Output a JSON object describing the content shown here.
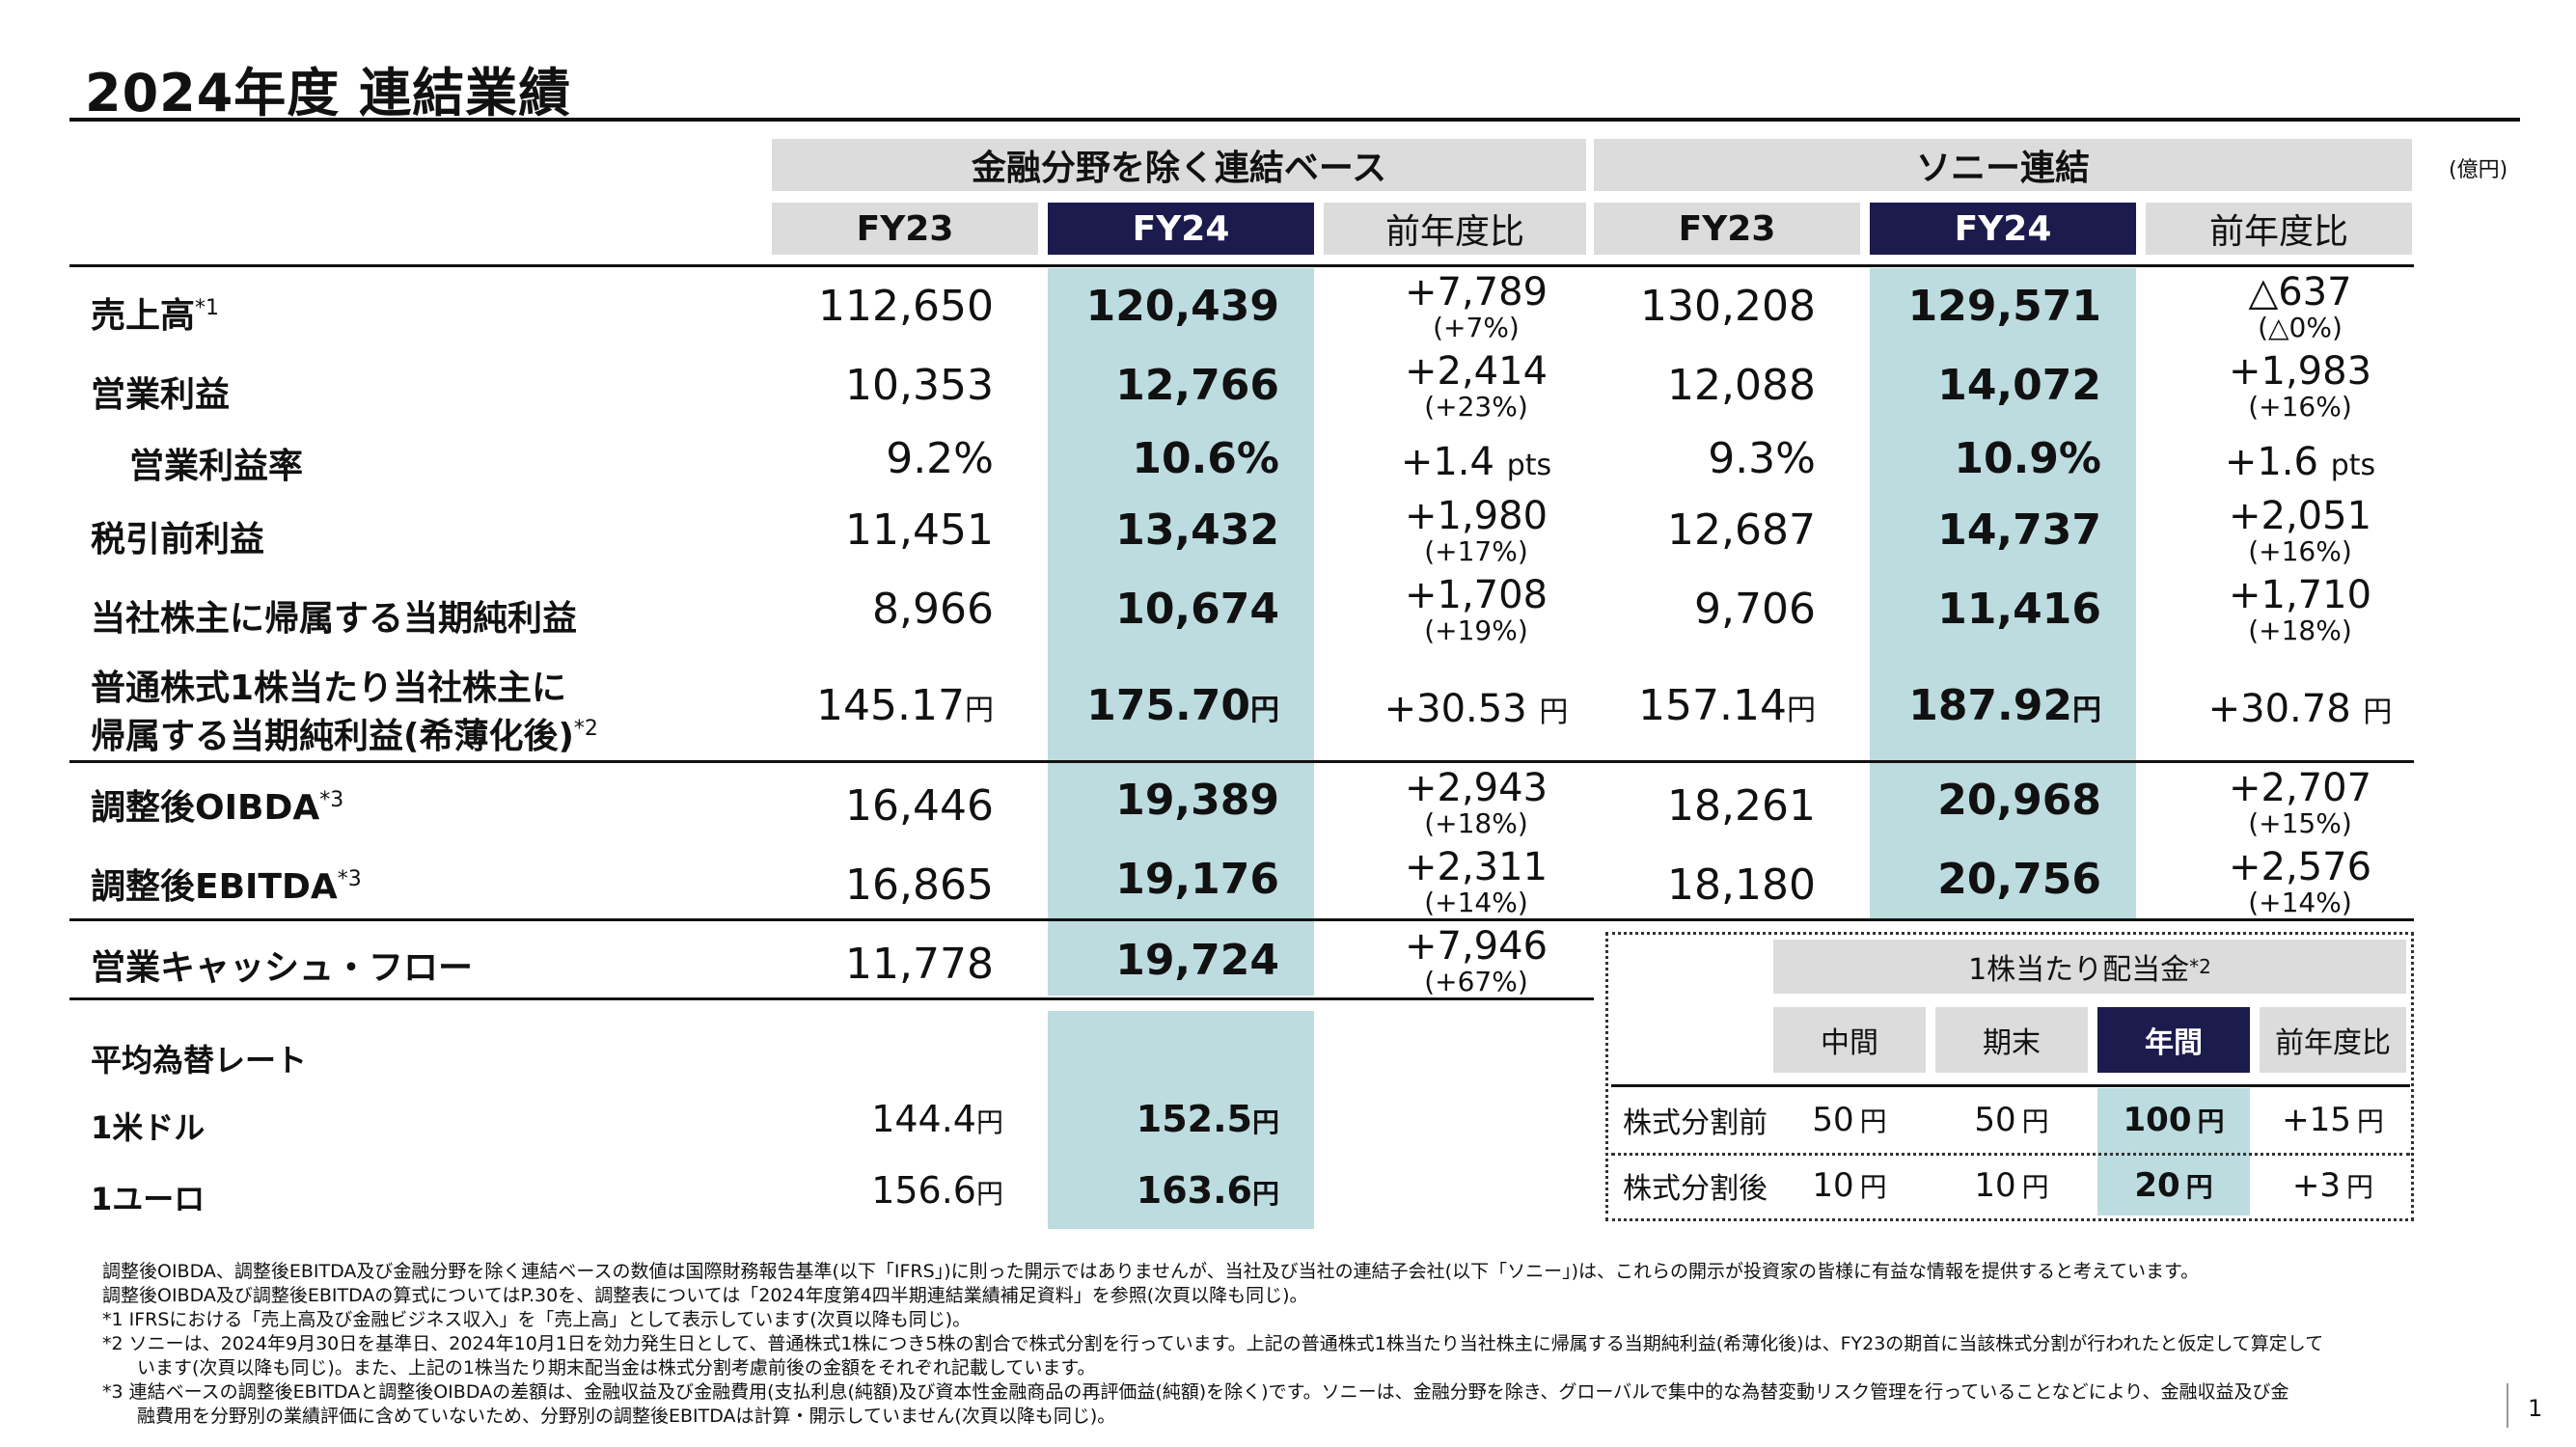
{
  "title": "2024年度 連結業績",
  "unit": "(億円)",
  "groups": {
    "excl_financial": "金融分野を除く連結ベース",
    "sony_consolidated": "ソニー連結"
  },
  "columns": {
    "fy23": "FY23",
    "fy24": "FY24",
    "yoy": "前年度比"
  },
  "rows": [
    {
      "label": "売上高",
      "note": "*1",
      "ex": {
        "fy23": "112,650",
        "fy24": "120,439",
        "chg": "+7,789",
        "pct": "(+7%)"
      },
      "sony": {
        "fy23": "130,208",
        "fy24": "129,571",
        "chg": "△637",
        "pct": "(△0%)"
      }
    },
    {
      "label": "営業利益",
      "note": "",
      "ex": {
        "fy23": "10,353",
        "fy24": "12,766",
        "chg": "+2,414",
        "pct": "(+23%)"
      },
      "sony": {
        "fy23": "12,088",
        "fy24": "14,072",
        "chg": "+1,983",
        "pct": "(+16%)"
      }
    },
    {
      "label": "営業利益率",
      "note": "",
      "ex": {
        "fy23": "9.2%",
        "fy24": "10.6%",
        "chg": "+1.4",
        "unit": "pts"
      },
      "sony": {
        "fy23": "9.3%",
        "fy24": "10.9%",
        "chg": "+1.6",
        "unit": "pts"
      }
    },
    {
      "label": "税引前利益",
      "note": "",
      "ex": {
        "fy23": "11,451",
        "fy24": "13,432",
        "chg": "+1,980",
        "pct": "(+17%)"
      },
      "sony": {
        "fy23": "12,687",
        "fy24": "14,737",
        "chg": "+2,051",
        "pct": "(+16%)"
      }
    },
    {
      "label": "当社株主に帰属する当期純利益",
      "note": "",
      "ex": {
        "fy23": "8,966",
        "fy24": "10,674",
        "chg": "+1,708",
        "pct": "(+19%)"
      },
      "sony": {
        "fy23": "9,706",
        "fy24": "11,416",
        "chg": "+1,710",
        "pct": "(+18%)"
      }
    },
    {
      "label_line1": "普通株式1株当たり当社株主に",
      "label_line2": "帰属する当期純利益(希薄化後)",
      "note": "*2",
      "ex": {
        "fy23": "145.17",
        "fy24": "175.70",
        "chg": "+30.53",
        "unit": "円"
      },
      "sony": {
        "fy23": "157.14",
        "fy24": "187.92",
        "chg": "+30.78",
        "unit": "円"
      }
    },
    {
      "label": "調整後OIBDA",
      "note": "*3",
      "ex": {
        "fy23": "16,446",
        "fy24": "19,389",
        "chg": "+2,943",
        "pct": "(+18%)"
      },
      "sony": {
        "fy23": "18,261",
        "fy24": "20,968",
        "chg": "+2,707",
        "pct": "(+15%)"
      }
    },
    {
      "label": "調整後EBITDA",
      "note": "*3",
      "ex": {
        "fy23": "16,865",
        "fy24": "19,176",
        "chg": "+2,311",
        "pct": "(+14%)"
      },
      "sony": {
        "fy23": "18,180",
        "fy24": "20,756",
        "chg": "+2,576",
        "pct": "(+14%)"
      }
    },
    {
      "label": "営業キャッシュ・フロー",
      "note": "",
      "ex": {
        "fy23": "11,778",
        "fy24": "19,724",
        "chg": "+7,946",
        "pct": "(+67%)"
      }
    }
  ],
  "yen": "円",
  "fx": {
    "title": "平均為替レート",
    "usd": {
      "label": "1米ドル",
      "fy23": "144.4",
      "fy24": "152.5"
    },
    "eur": {
      "label": "1ユーロ",
      "fy23": "156.6",
      "fy24": "163.6"
    }
  },
  "dividend": {
    "title": "1株当たり配当金",
    "title_note": "*2",
    "headers": [
      "中間",
      "期末",
      "年間",
      "前年度比"
    ],
    "rows": [
      {
        "label": "株式分割前",
        "values": [
          "50",
          "50",
          "100",
          "+15"
        ]
      },
      {
        "label": "株式分割後",
        "values": [
          "10",
          "10",
          "20",
          "+3"
        ]
      }
    ],
    "unit": "円"
  },
  "footnotes": [
    "調整後OIBDA、調整後EBITDA及び金融分野を除く連結ベースの数値は国際財務報告基準(以下「IFRS」)に則った開示ではありませんが、当社及び当社の連結子会社(以下「ソニー」)は、これらの開示が投資家の皆様に有益な情報を提供すると考えています。",
    "調整後OIBDA及び調整後EBITDAの算式についてはP.30を、調整表については「2024年度第4四半期連結業績補足資料」を参照(次頁以降も同じ)。",
    "*1 IFRSにおける「売上高及び金融ビジネス収入」を「売上高」として表示しています(次頁以降も同じ)。",
    "*2 ソニーは、2024年9月30日を基準日、2024年10月1日を効力発生日として、普通株式1株につき5株の割合で株式分割を行っています。上記の普通株式1株当たり当社株主に帰属する当期純利益(希薄化後)は、FY23の期首に当該株式分割が行われたと仮定して算定して",
    "います(次頁以降も同じ)。また、上記の1株当たり期末配当金は株式分割考慮前後の金額をそれぞれ記載しています。",
    "*3 連結ベースの調整後EBITDAと調整後OIBDAの差額は、金融収益及び金融費用(支払利息(純額)及び資本性金融商品の再評価益(純額)を除く)です。ソニーは、金融分野を除き、グローバルで集中的な為替変動リスク管理を行っていることなどにより、金融収益及び金",
    "融費用を分野別の業績評価に含めていないため、分野別の調整後EBITDAは計算・開示していません(次頁以降も同じ)。"
  ],
  "page_number": "1"
}
